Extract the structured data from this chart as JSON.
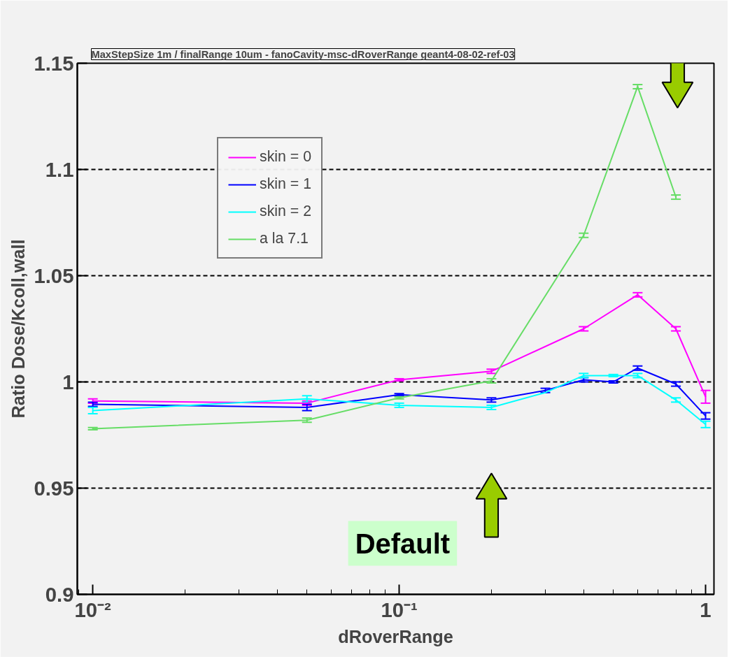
{
  "chart_data": {
    "type": "line",
    "title": "MaxStepSize 1m / finalRange 10um - fanoCavity-msc-dRoverRange geant4-08-02-ref-03",
    "xlabel": "dRoverRange",
    "ylabel": "Ratio Dose/Kcoll,wall",
    "x": [
      0.01,
      0.05,
      0.1,
      0.2,
      0.3,
      0.4,
      0.5,
      0.6,
      0.8,
      1.0
    ],
    "series": [
      {
        "name": "skin = 0",
        "color": "#ff00ff",
        "values": [
          0.991,
          0.99,
          1.001,
          1.005,
          null,
          1.025,
          null,
          1.041,
          1.025,
          0.993
        ],
        "errors": [
          0.001,
          0.001,
          0.0005,
          0.001,
          null,
          0.001,
          null,
          0.001,
          0.001,
          0.003
        ]
      },
      {
        "name": "skin = 1",
        "color": "#0000ff",
        "values": [
          0.9895,
          0.988,
          0.994,
          0.9915,
          0.996,
          1.001,
          1.0,
          1.0065,
          0.999,
          0.984
        ],
        "errors": [
          0.001,
          0.0015,
          0.0005,
          0.001,
          0.001,
          0.001,
          0.0005,
          0.001,
          0.001,
          0.0015
        ]
      },
      {
        "name": "skin = 2",
        "color": "#00ffff",
        "values": [
          0.9865,
          0.992,
          0.989,
          0.988,
          0.995,
          1.003,
          1.003,
          1.003,
          0.9915,
          0.98
        ],
        "errors": [
          0.0015,
          0.0015,
          0.001,
          0.001,
          null,
          0.001,
          0.0005,
          0.001,
          0.001,
          0.0015
        ]
      },
      {
        "name": "a la 7.1",
        "color": "#66dd66",
        "values": [
          0.978,
          0.982,
          0.9925,
          1.0005,
          null,
          1.069,
          null,
          1.139,
          1.087,
          null
        ],
        "errors": [
          0.0005,
          0.001,
          0.0005,
          0.001,
          null,
          0.001,
          null,
          0.001,
          0.001,
          null
        ]
      }
    ],
    "xlim": [
      0.0089,
      1.065
    ],
    "ylim": [
      0.9,
      1.15
    ],
    "xticks": [
      {
        "value": 0.01,
        "label": "10⁻²"
      },
      {
        "value": 0.1,
        "label": "10⁻¹"
      },
      {
        "value": 1,
        "label": "1"
      }
    ],
    "yticks": [
      0.9,
      0.95,
      {
        "value": 1,
        "label": "1"
      },
      1.05,
      1.1,
      1.15
    ],
    "log": "x",
    "grid": "y",
    "legend": "top left",
    "marker": "none",
    "line_style": "solid",
    "annotations": [
      "Default"
    ]
  }
}
